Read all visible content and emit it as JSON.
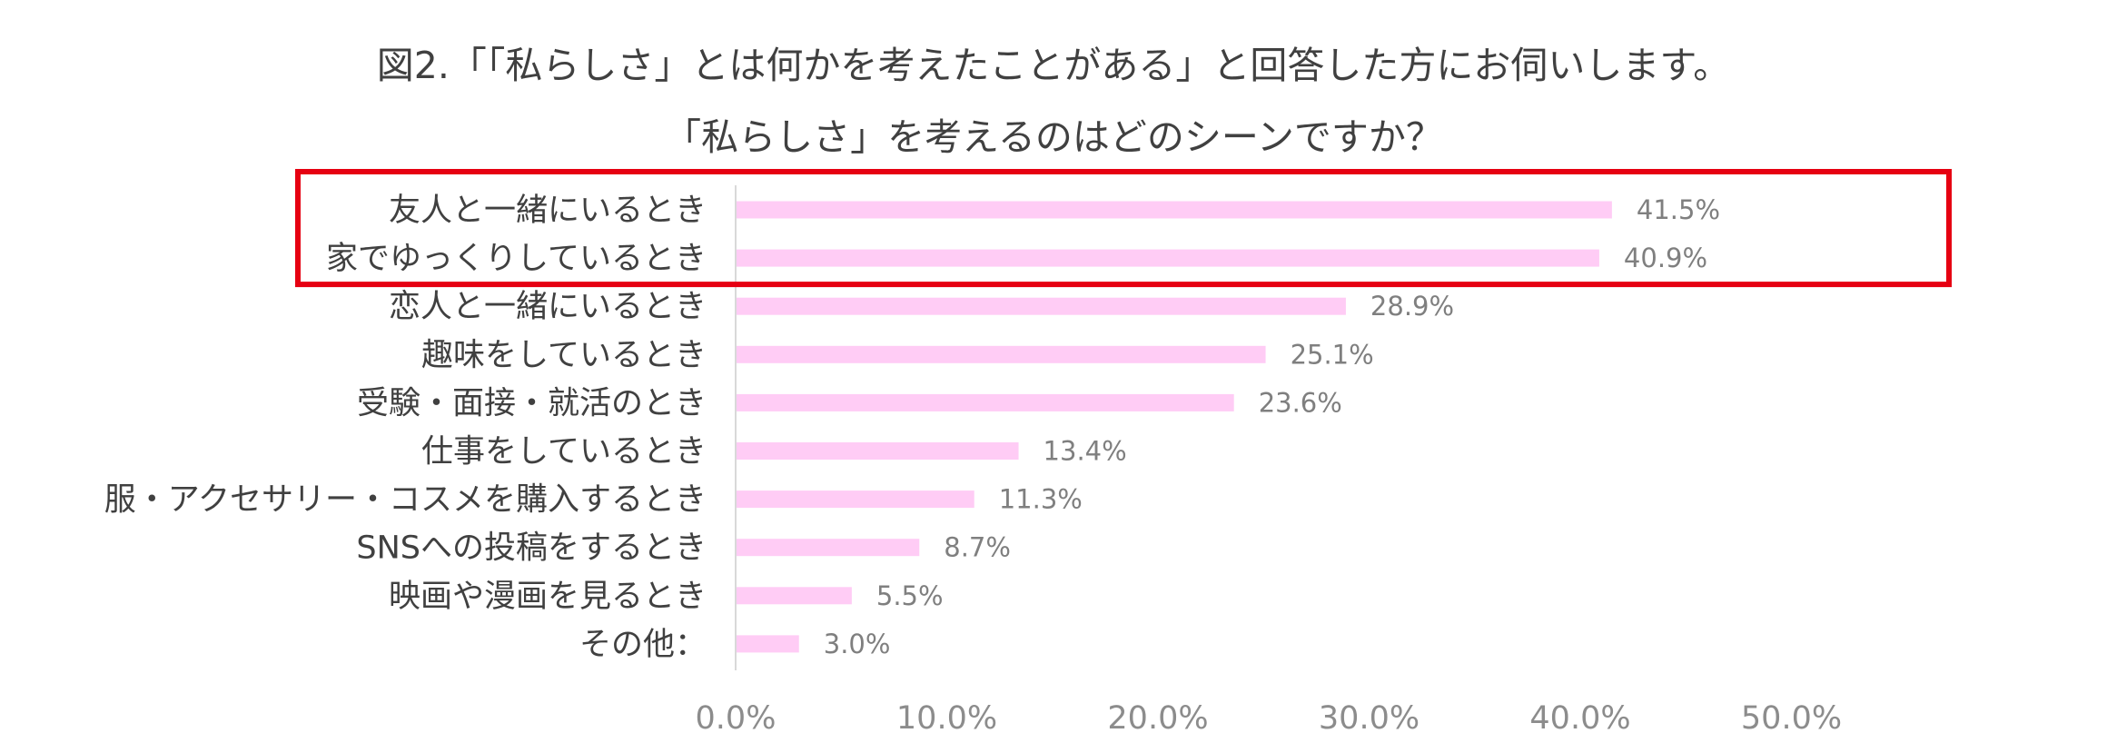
{
  "chart_data": {
    "type": "bar",
    "orientation": "horizontal",
    "title": "図2.「「私らしさ」とは何かを考えたことがある」と回答した方にお伺いします。",
    "subtitle": "「私らしさ」を考えるのはどのシーンですか？",
    "categories": [
      "友人と一緒にいるとき",
      "家でゆっくりしているとき",
      "恋人と一緒にいるとき",
      "趣味をしているとき",
      "受験・面接・就活のとき",
      "仕事をしているとき",
      "服・アクセサリー・コスメを購入するとき",
      "SNSへの投稿をするとき",
      "映画や漫画を見るとき",
      "その他："
    ],
    "values": [
      41.5,
      40.9,
      28.9,
      25.1,
      23.6,
      13.4,
      11.3,
      8.7,
      5.5,
      3.0
    ],
    "value_labels": [
      "41.5%",
      "40.9%",
      "28.9%",
      "25.1%",
      "23.6%",
      "13.4%",
      "11.3%",
      "8.7%",
      "5.5%",
      "3.0%"
    ],
    "xlim": [
      0,
      50
    ],
    "xticks": [
      "0.0%",
      "10.0%",
      "20.0%",
      "30.0%",
      "40.0%",
      "50.0%"
    ],
    "grid": false,
    "legend": "none",
    "bar_color": "#ffccf5",
    "axis_color": "#d9d9d9",
    "highlight": {
      "categories": [
        "友人と一緒にいるとき",
        "家でゆっくりしているとき"
      ],
      "color": "#e60012"
    }
  }
}
